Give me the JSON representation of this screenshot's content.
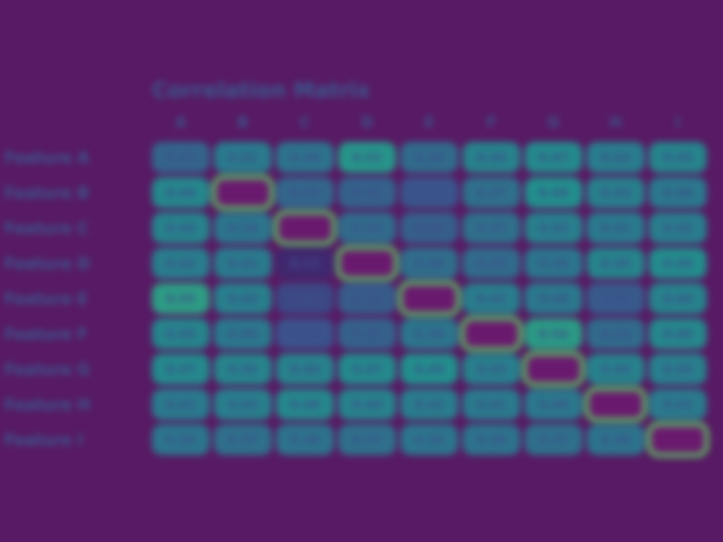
{
  "chart_data": {
    "type": "heatmap",
    "title": "Correlation Matrix",
    "row_labels": [
      "Feature A",
      "Feature B",
      "Feature C",
      "Feature D",
      "Feature E",
      "Feature F",
      "Feature G",
      "Feature H",
      "Feature I"
    ],
    "col_labels": [
      "A",
      "B",
      "C",
      "D",
      "E",
      "F",
      "G",
      "H",
      "I"
    ],
    "values": [
      [
        0.32,
        0.41,
        0.38,
        0.52,
        0.35,
        0.44,
        0.47,
        0.42,
        0.45
      ],
      [
        0.46,
        1.0,
        0.33,
        0.31,
        0.26,
        0.37,
        0.49,
        0.43,
        0.4
      ],
      [
        0.44,
        0.39,
        1.0,
        0.35,
        0.3,
        0.37,
        0.43,
        0.41,
        0.42
      ],
      [
        0.42,
        0.41,
        0.12,
        1.0,
        0.36,
        0.35,
        0.39,
        0.45,
        0.48
      ],
      [
        0.55,
        0.43,
        0.22,
        0.29,
        1.0,
        0.42,
        0.4,
        0.28,
        0.44
      ],
      [
        0.45,
        0.4,
        0.25,
        0.31,
        0.39,
        1.0,
        0.54,
        0.35,
        0.46
      ],
      [
        0.47,
        0.45,
        0.44,
        0.47,
        0.49,
        0.43,
        1.0,
        0.44,
        0.43
      ],
      [
        0.41,
        0.43,
        0.46,
        0.44,
        0.42,
        0.41,
        0.4,
        1.0,
        0.41
      ],
      [
        0.39,
        0.37,
        0.38,
        0.37,
        0.39,
        0.38,
        0.37,
        0.38,
        1.0
      ]
    ],
    "value_range": [
      0,
      1
    ],
    "colormap": "viridis",
    "legend": "none"
  }
}
